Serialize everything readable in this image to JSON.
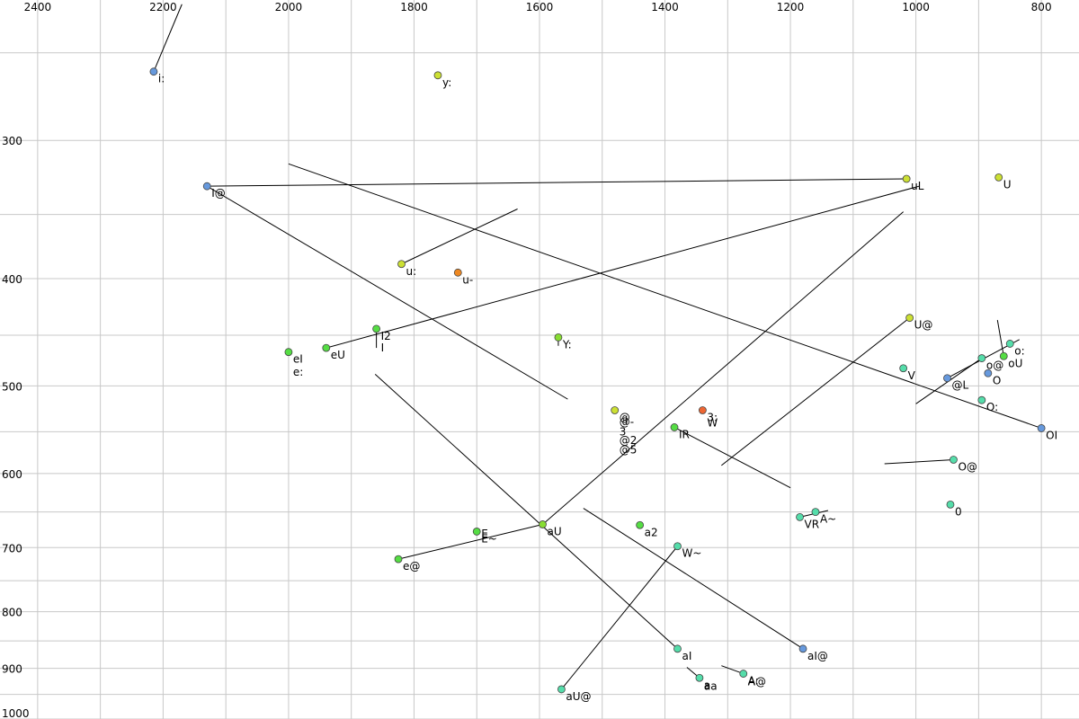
{
  "chart_data": {
    "type": "scatter",
    "title": "",
    "xlabel": "",
    "ylabel": "",
    "x_axis": {
      "reversed": true,
      "ticks": [
        2400,
        2200,
        2000,
        1800,
        1600,
        1400,
        1200,
        1000,
        800
      ],
      "range": [
        2460,
        740
      ]
    },
    "y_axis": {
      "scale": "log",
      "ticks": [
        300,
        400,
        500,
        600,
        700,
        800,
        900,
        1000
      ],
      "range": [
        224,
        1000
      ]
    },
    "grid": true,
    "points": [
      {
        "label": "i:",
        "x": 2215,
        "y": 260,
        "color": "#6699dd"
      },
      {
        "label": "y:",
        "x": 1762,
        "y": 262,
        "color": "#cce033"
      },
      {
        "label": "I@",
        "x": 2130,
        "y": 330,
        "color": "#6699dd"
      },
      {
        "label": "uL",
        "x": 1015,
        "y": 325,
        "color": "#cce033"
      },
      {
        "label": "U",
        "x": 868,
        "y": 324,
        "color": "#cce033"
      },
      {
        "label": "u:",
        "x": 1820,
        "y": 388,
        "color": "#cce033"
      },
      {
        "label": "u-",
        "x": 1730,
        "y": 395,
        "color": "#ee8822"
      },
      {
        "label": "I2",
        "x": 1860,
        "y": 444,
        "color": "#55dd44"
      },
      {
        "label": "eI",
        "x": 2000,
        "y": 466,
        "color": "#55dd44"
      },
      {
        "label": "eU",
        "x": 1940,
        "y": 462,
        "color": "#55dd44"
      },
      {
        "label": "Y:",
        "x": 1570,
        "y": 452,
        "color": "#88dd33"
      },
      {
        "label": "U@",
        "x": 1010,
        "y": 434,
        "color": "#cce033"
      },
      {
        "label": "V",
        "x": 1020,
        "y": 482,
        "color": "#55ddaa"
      },
      {
        "label": "@L",
        "x": 950,
        "y": 492,
        "color": "#6699dd"
      },
      {
        "label": "o@",
        "x": 895,
        "y": 472,
        "color": "#55ddaa"
      },
      {
        "label": "oU",
        "x": 860,
        "y": 470,
        "color": "#55dd44"
      },
      {
        "label": "o:",
        "x": 850,
        "y": 458,
        "color": "#55ddaa"
      },
      {
        "label": "O",
        "x": 885,
        "y": 487,
        "color": "#6699dd"
      },
      {
        "label": "O:",
        "x": 895,
        "y": 515,
        "color": "#55ddaa"
      },
      {
        "label": "OI",
        "x": 800,
        "y": 546,
        "color": "#6699dd"
      },
      {
        "label": "@",
        "x": 1480,
        "y": 526,
        "color": "#cce033"
      },
      {
        "label": "3:",
        "x": 1340,
        "y": 526,
        "color": "#ee6633"
      },
      {
        "label": "IR",
        "x": 1385,
        "y": 545,
        "color": "#55dd44"
      },
      {
        "label": "O@",
        "x": 940,
        "y": 583,
        "color": "#55ddaa"
      },
      {
        "label": "0",
        "x": 945,
        "y": 640,
        "color": "#55ddaa"
      },
      {
        "label": "VR",
        "x": 1185,
        "y": 657,
        "color": "#55ddaa"
      },
      {
        "label": "A~",
        "x": 1160,
        "y": 650,
        "color": "#55ddaa"
      },
      {
        "label": "aU",
        "x": 1595,
        "y": 667,
        "color": "#88dd33"
      },
      {
        "label": "a2",
        "x": 1440,
        "y": 668,
        "color": "#55dd44"
      },
      {
        "label": "E~",
        "x": 1700,
        "y": 677,
        "color": "#55dd44"
      },
      {
        "label": "e@",
        "x": 1825,
        "y": 717,
        "color": "#55dd44"
      },
      {
        "label": "W~",
        "x": 1380,
        "y": 698,
        "color": "#55ddaa"
      },
      {
        "label": "aI",
        "x": 1380,
        "y": 864,
        "color": "#55ddaa"
      },
      {
        "label": "aI@",
        "x": 1180,
        "y": 864,
        "color": "#6699dd"
      },
      {
        "label": "A:",
        "x": 1275,
        "y": 910,
        "color": "#55ddaa"
      },
      {
        "label": "a",
        "x": 1345,
        "y": 918,
        "color": "#55ddaa"
      },
      {
        "label": "aU@",
        "x": 1565,
        "y": 940,
        "color": "#55ddaa"
      }
    ],
    "extra_labels": [
      {
        "label": "e:",
        "x": 2000,
        "y": 486
      },
      {
        "label": "@-",
        "x": 1480,
        "y": 539
      },
      {
        "label": "3",
        "x": 1480,
        "y": 550
      },
      {
        "label": "@2",
        "x": 1480,
        "y": 560
      },
      {
        "label": "@5",
        "x": 1480,
        "y": 571
      },
      {
        "label": "W",
        "x": 1340,
        "y": 540
      },
      {
        "label": "E",
        "x": 1700,
        "y": 680
      },
      {
        "label": "A@",
        "x": 1275,
        "y": 925
      },
      {
        "label": "aa",
        "x": 1345,
        "y": 934
      },
      {
        "label": "I",
        "x": 1860,
        "y": 462
      }
    ],
    "lines": [
      {
        "x1": 2170,
        "y1": 226,
        "x2": 2215,
        "y2": 260
      },
      {
        "x1": 2130,
        "y1": 330,
        "x2": 1015,
        "y2": 325
      },
      {
        "x1": 2130,
        "y1": 330,
        "x2": 1555,
        "y2": 514
      },
      {
        "x1": 2000,
        "y1": 315,
        "x2": 800,
        "y2": 546
      },
      {
        "x1": 1820,
        "y1": 388,
        "x2": 1635,
        "y2": 346
      },
      {
        "x1": 1940,
        "y1": 462,
        "x2": 995,
        "y2": 330
      },
      {
        "x1": 1860,
        "y1": 444,
        "x2": 1860,
        "y2": 462
      },
      {
        "x1": 1570,
        "y1": 452,
        "x2": 1570,
        "y2": 460
      },
      {
        "x1": 1010,
        "y1": 434,
        "x2": 1310,
        "y2": 590
      },
      {
        "x1": 1595,
        "y1": 667,
        "x2": 1020,
        "y2": 348
      },
      {
        "x1": 1825,
        "y1": 717,
        "x2": 1595,
        "y2": 667
      },
      {
        "x1": 1862,
        "y1": 488,
        "x2": 1380,
        "y2": 864
      },
      {
        "x1": 1530,
        "y1": 645,
        "x2": 1180,
        "y2": 864
      },
      {
        "x1": 1385,
        "y1": 545,
        "x2": 1200,
        "y2": 618
      },
      {
        "x1": 1185,
        "y1": 657,
        "x2": 1140,
        "y2": 648
      },
      {
        "x1": 1565,
        "y1": 940,
        "x2": 1380,
        "y2": 698
      },
      {
        "x1": 1275,
        "y1": 910,
        "x2": 1310,
        "y2": 895
      },
      {
        "x1": 1345,
        "y1": 918,
        "x2": 1365,
        "y2": 898
      },
      {
        "x1": 940,
        "y1": 583,
        "x2": 1050,
        "y2": 588
      },
      {
        "x1": 1000,
        "y1": 519,
        "x2": 895,
        "y2": 472
      },
      {
        "x1": 950,
        "y1": 492,
        "x2": 835,
        "y2": 454
      },
      {
        "x1": 860,
        "y1": 470,
        "x2": 870,
        "y2": 436
      }
    ]
  }
}
